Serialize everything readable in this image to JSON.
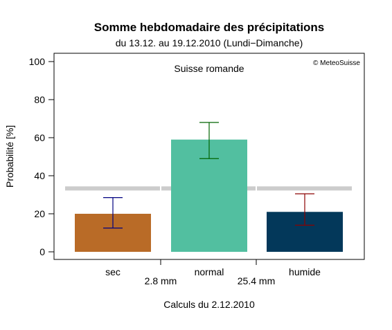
{
  "chart_data": {
    "type": "bar",
    "title": "Somme hebdomadaire des précipitations",
    "subtitle": "du 13.12. au 19.12.2010 (Lundi−Dimanche)",
    "region": "Suisse romande",
    "copyright": "© MeteoSuisse",
    "ylabel": "Probabilité [%]",
    "ylim": [
      0,
      100
    ],
    "yticks": [
      0,
      20,
      40,
      60,
      80,
      100
    ],
    "categories": [
      "sec",
      "normal",
      "humide"
    ],
    "values": [
      20,
      59,
      21
    ],
    "error_low": [
      12.5,
      49,
      14
    ],
    "error_high": [
      28.5,
      68,
      30.5
    ],
    "bar_colors": [
      "#b96b27",
      "#52bfa0",
      "#03385a"
    ],
    "error_colors": [
      "#000080",
      "#006400",
      "#8b0000"
    ],
    "reference_value": 33.3,
    "reference_color": "#cccccc",
    "thresholds": [
      "2.8 mm",
      "25.4 mm"
    ],
    "footer": "Calculs du 2.12.2010"
  }
}
